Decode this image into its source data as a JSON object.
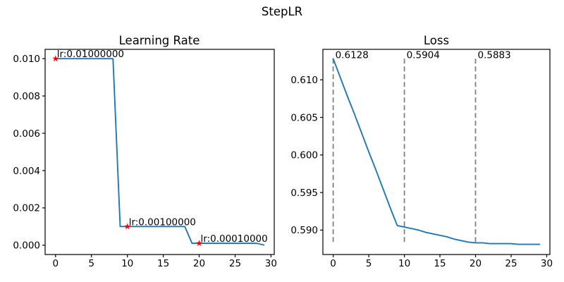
{
  "figure": {
    "suptitle": "StepLR",
    "background": "#ffffff",
    "colors": {
      "line": "#1f77b4",
      "marker": "#ff0000",
      "vline": "#808080",
      "text": "#000000",
      "spine": "#000000"
    }
  },
  "chart_data": [
    {
      "type": "line",
      "title": "Learning Rate",
      "xlabel": "",
      "ylabel": "",
      "grid": false,
      "x": [
        0,
        1,
        2,
        3,
        4,
        5,
        6,
        7,
        8,
        9,
        10,
        11,
        12,
        13,
        14,
        15,
        16,
        17,
        18,
        19,
        20,
        21,
        22,
        23,
        24,
        25,
        26,
        27,
        28,
        29
      ],
      "series": [
        {
          "name": "learning_rate",
          "color": "#1f77b4",
          "values": [
            0.01,
            0.01,
            0.01,
            0.01,
            0.01,
            0.01,
            0.01,
            0.01,
            0.01,
            0.001,
            0.001,
            0.001,
            0.001,
            0.001,
            0.001,
            0.001,
            0.001,
            0.001,
            0.001,
            0.0001,
            0.0001,
            0.0001,
            0.0001,
            0.0001,
            0.0001,
            0.0001,
            0.0001,
            0.0001,
            0.0001,
            1e-05
          ]
        }
      ],
      "xlim": [
        -1.45,
        30.45
      ],
      "ylim": [
        -0.0005,
        0.0105
      ],
      "xticks": {
        "values": [
          0,
          5,
          10,
          15,
          20,
          25,
          30
        ],
        "labels": [
          "0",
          "5",
          "10",
          "15",
          "20",
          "25",
          "30"
        ]
      },
      "yticks": {
        "values": [
          0.0,
          0.002,
          0.004,
          0.006,
          0.008,
          0.01
        ],
        "labels": [
          "0.000",
          "0.002",
          "0.004",
          "0.006",
          "0.008",
          "0.010"
        ]
      },
      "markers": [
        {
          "x": 0,
          "y": 0.01,
          "shape": "star",
          "color": "#ff0000",
          "label": "lr:0.01000000"
        },
        {
          "x": 10,
          "y": 0.001,
          "shape": "star",
          "color": "#ff0000",
          "label": "lr:0.00100000"
        },
        {
          "x": 20,
          "y": 0.0001,
          "shape": "star",
          "color": "#ff0000",
          "label": "lr:0.00010000"
        }
      ],
      "vlines": []
    },
    {
      "type": "line",
      "title": "Loss",
      "xlabel": "",
      "ylabel": "",
      "grid": false,
      "x": [
        0,
        1,
        2,
        3,
        4,
        5,
        6,
        7,
        8,
        9,
        10,
        11,
        12,
        13,
        14,
        15,
        16,
        17,
        18,
        19,
        20,
        21,
        22,
        23,
        24,
        25,
        26,
        27,
        28,
        29
      ],
      "series": [
        {
          "name": "loss",
          "color": "#1f77b4",
          "values": [
            0.6128,
            0.6103,
            0.6078,
            0.6054,
            0.6029,
            0.6004,
            0.598,
            0.5955,
            0.593,
            0.5906,
            0.5904,
            0.5902,
            0.59,
            0.5897,
            0.5895,
            0.5893,
            0.5891,
            0.5888,
            0.5886,
            0.5884,
            0.5883,
            0.5883,
            0.5882,
            0.5882,
            0.5882,
            0.5882,
            0.5881,
            0.5881,
            0.5881,
            0.5881
          ]
        }
      ],
      "xlim": [
        -1.45,
        30.45
      ],
      "ylim": [
        0.58675,
        0.61405
      ],
      "xticks": {
        "values": [
          0,
          5,
          10,
          15,
          20,
          25,
          30
        ],
        "labels": [
          "0",
          "5",
          "10",
          "15",
          "20",
          "25",
          "30"
        ]
      },
      "yticks": {
        "values": [
          0.59,
          0.595,
          0.6,
          0.605,
          0.61
        ],
        "labels": [
          "0.590",
          "0.595",
          "0.600",
          "0.605",
          "0.610"
        ]
      },
      "markers": [],
      "vlines": [
        {
          "x": 0,
          "label": "0.6128",
          "style": "dashed",
          "color": "#808080"
        },
        {
          "x": 10,
          "label": "0.5904",
          "style": "dashed",
          "color": "#808080"
        },
        {
          "x": 20,
          "label": "0.5883",
          "style": "dashed",
          "color": "#808080"
        }
      ]
    }
  ]
}
